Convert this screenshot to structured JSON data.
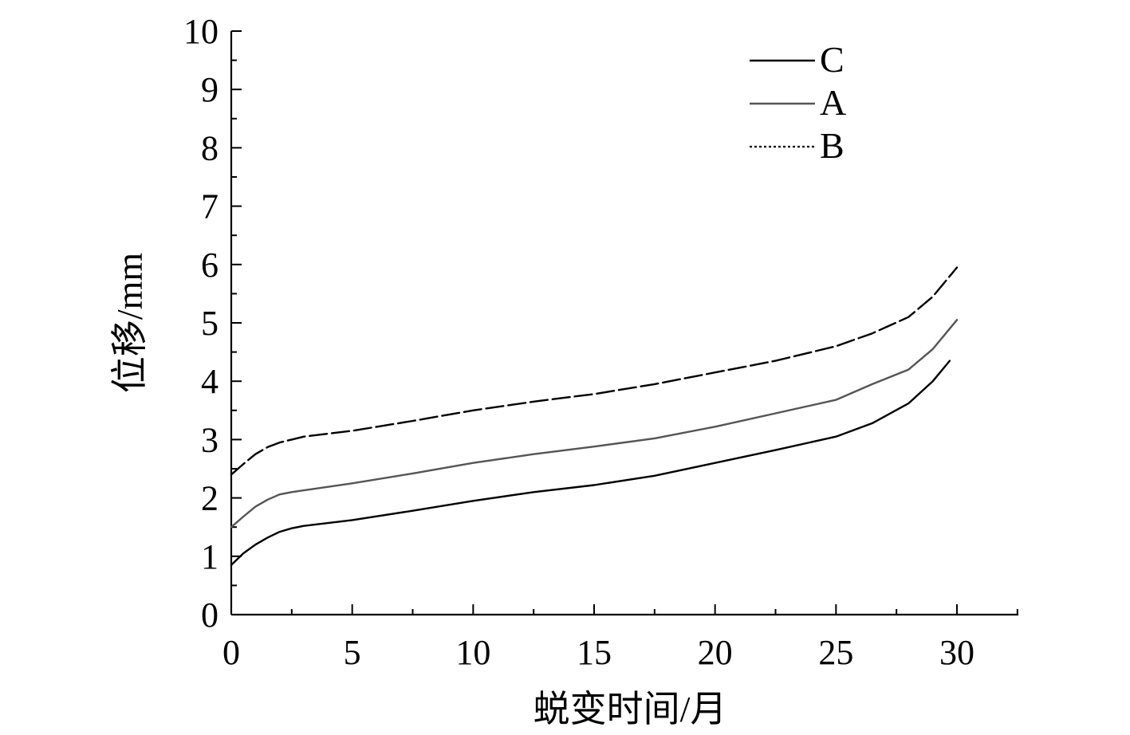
{
  "chart_data": {
    "type": "line",
    "title": "",
    "xlabel": "蜕变时间/月",
    "ylabel": "位移/mm",
    "xlim": [
      0,
      32.5
    ],
    "ylim": [
      0,
      10
    ],
    "xticks": [
      0,
      5,
      10,
      15,
      20,
      25,
      30
    ],
    "xtick_labels": [
      "0",
      "5",
      "10",
      "15",
      "20",
      "25",
      "30"
    ],
    "yticks": [
      0,
      1,
      2,
      3,
      4,
      5,
      6,
      7,
      8,
      9,
      10
    ],
    "ytick_labels": [
      "0",
      "1",
      "2",
      "3",
      "4",
      "5",
      "6",
      "7",
      "8",
      "9",
      "10"
    ],
    "grid": false,
    "legend_position": "top-right",
    "series": [
      {
        "name": "C",
        "color": "#000000",
        "dash": "solid",
        "x": [
          0,
          0.5,
          1,
          1.5,
          2,
          2.5,
          3,
          5,
          7.5,
          10,
          12.5,
          15,
          17.5,
          20,
          22.5,
          25,
          26.5,
          28,
          29,
          29.7
        ],
        "y": [
          0.85,
          1.05,
          1.2,
          1.32,
          1.42,
          1.48,
          1.52,
          1.62,
          1.78,
          1.95,
          2.1,
          2.22,
          2.38,
          2.6,
          2.82,
          3.05,
          3.28,
          3.62,
          4.0,
          4.35
        ]
      },
      {
        "name": "A",
        "color": "#555555",
        "dash": "solid",
        "x": [
          0,
          0.5,
          1,
          1.5,
          2,
          2.5,
          3,
          5,
          7.5,
          10,
          12.5,
          15,
          17.5,
          20,
          22.5,
          25,
          26.5,
          28,
          29,
          30
        ],
        "y": [
          1.5,
          1.68,
          1.85,
          1.97,
          2.06,
          2.1,
          2.13,
          2.25,
          2.42,
          2.6,
          2.75,
          2.88,
          3.02,
          3.22,
          3.45,
          3.68,
          3.95,
          4.2,
          4.55,
          5.05
        ]
      },
      {
        "name": "B",
        "color": "#000000",
        "dash": "dashed",
        "x": [
          0,
          0.5,
          1,
          1.5,
          2,
          2.5,
          3,
          5,
          7.5,
          10,
          12.5,
          15,
          17.5,
          20,
          22.5,
          25,
          26.5,
          28,
          29,
          30
        ],
        "y": [
          2.4,
          2.58,
          2.75,
          2.87,
          2.95,
          3.0,
          3.05,
          3.15,
          3.32,
          3.5,
          3.65,
          3.78,
          3.95,
          4.15,
          4.35,
          4.6,
          4.82,
          5.1,
          5.45,
          5.95
        ]
      }
    ]
  }
}
